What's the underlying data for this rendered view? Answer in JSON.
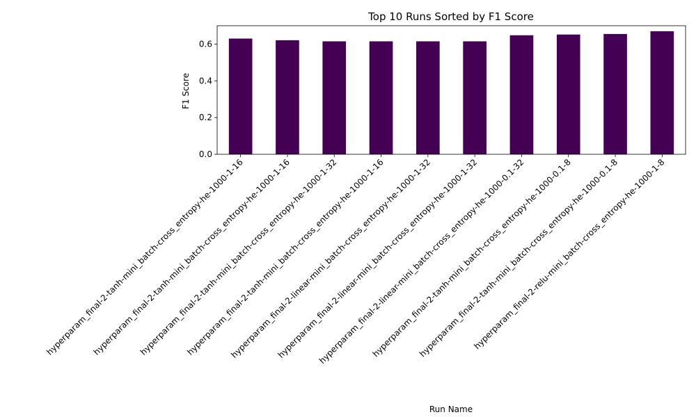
{
  "chart_data": {
    "type": "bar",
    "title": "Top 10 Runs Sorted by F1 Score",
    "xlabel": "Run Name",
    "ylabel": "F1 Score",
    "ylim": [
      0,
      0.7
    ],
    "yticks": [
      "0.0",
      "0.2",
      "0.4",
      "0.6"
    ],
    "grid": false,
    "bar_color": "#440154",
    "categories": [
      "hyperparam_final-2-tanh-mini_batch-cross_entropy-he-1000-1-16",
      "hyperparam_final-2-tanh-mini_batch-cross_entropy-he-1000-1-16",
      "hyperparam_final-2-tanh-mini_batch-cross_entropy-he-1000-1-32",
      "hyperparam_final-2-tanh-mini_batch-cross_entropy-he-1000-1-16",
      "hyperparam_final-2-linear-mini_batch-cross_entropy-he-1000-1-32",
      "hyperparam_final-2-linear-mini_batch-cross_entropy-he-1000-1-32",
      "hyperparam_final-2-linear-mini_batch-cross_entropy-he-1000-0.1-32",
      "hyperparam_final-2-tanh-mini_batch-cross_entropy-he-1000-0.1-8",
      "hyperparam_final-2-tanh-mini_batch-cross_entropy-he-1000-0.1-8",
      "hyperparam_final-2-relu-mini_batch-cross_entropy-he-1000-1-8"
    ],
    "values": [
      0.63,
      0.621,
      0.615,
      0.615,
      0.615,
      0.615,
      0.648,
      0.652,
      0.655,
      0.67
    ]
  }
}
